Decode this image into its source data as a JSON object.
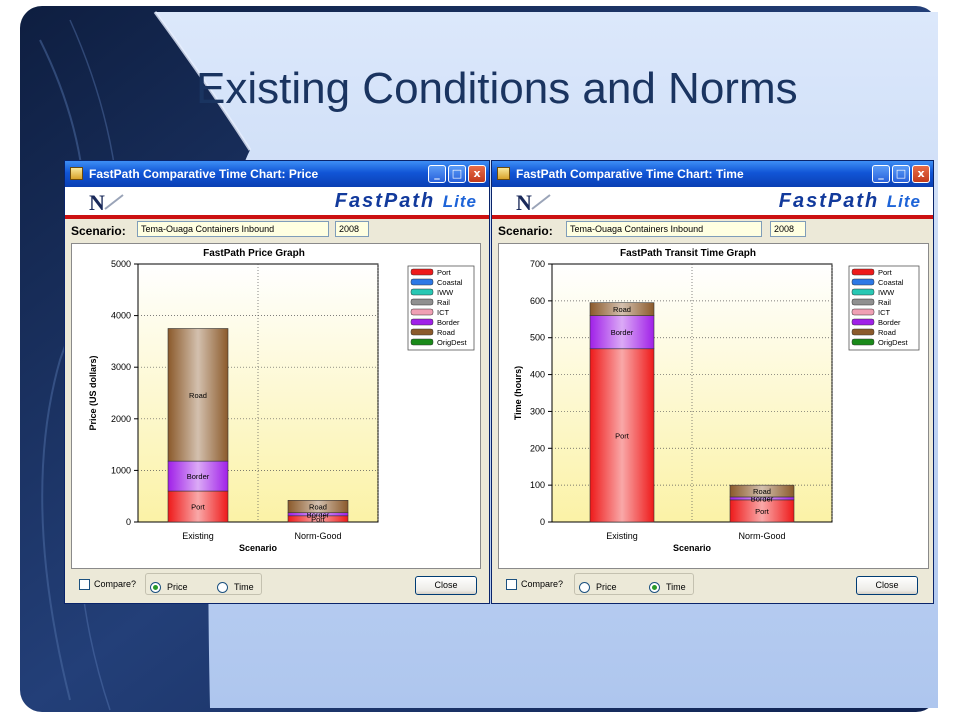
{
  "slide": {
    "title": "Existing Conditions and Norms"
  },
  "windows": [
    {
      "title": "FastPath Comparative Time Chart:  Price",
      "brand": "FastPath",
      "brand_suffix": "Lite",
      "logo": "N",
      "scenario_label": "Scenario:",
      "scenario_value": "Tema-Ouaga Containers Inbound",
      "year": "2008",
      "compare_label": "Compare?",
      "price_label": "Price",
      "time_label": "Time",
      "selected": "price",
      "close_label": "Close",
      "title_buttons": [
        "_",
        "□",
        "x"
      ]
    },
    {
      "title": "FastPath Comparative Time Chart:  Time",
      "brand": "FastPath",
      "brand_suffix": "Lite",
      "logo": "N",
      "scenario_label": "Scenario:",
      "scenario_value": "Tema-Ouaga Containers Inbound",
      "year": "2008",
      "compare_label": "Compare?",
      "price_label": "Price",
      "time_label": "Time",
      "selected": "time",
      "close_label": "Close",
      "title_buttons": [
        "_",
        "□",
        "x"
      ]
    }
  ],
  "chart_data": [
    {
      "type": "bar",
      "stacked": true,
      "title": "FastPath Price Graph",
      "xlabel": "Scenario",
      "ylabel": "Price (US dollars)",
      "ylim": [
        0,
        5000
      ],
      "yticks": [
        0,
        1000,
        2000,
        3000,
        4000,
        5000
      ],
      "categories": [
        "Existing",
        "Norm-Good"
      ],
      "grid": true,
      "legend_position": "top-right",
      "legend": [
        "Port",
        "Coastal",
        "IWW",
        "Rail",
        "ICT",
        "Border",
        "Road",
        "OrigDest"
      ],
      "legend_colors": [
        "#ee1a1a",
        "#2c78e6",
        "#28c8b4",
        "#909090",
        "#f0a0b4",
        "#a020e8",
        "#8b5a2b",
        "#1a8a1a"
      ],
      "series": [
        {
          "name": "Port",
          "values": [
            600,
            120
          ],
          "color": "#ee1a1a"
        },
        {
          "name": "Border",
          "values": [
            580,
            60
          ],
          "color": "#a020e8"
        },
        {
          "name": "Road",
          "values": [
            2570,
            240
          ],
          "color": "#8b5a2b"
        }
      ]
    },
    {
      "type": "bar",
      "stacked": true,
      "title": "FastPath Transit Time Graph",
      "xlabel": "Scenario",
      "ylabel": "Time (hours)",
      "ylim": [
        0,
        700
      ],
      "yticks": [
        0,
        100,
        200,
        300,
        400,
        500,
        600,
        700
      ],
      "categories": [
        "Existing",
        "Norm-Good"
      ],
      "grid": true,
      "legend_position": "top-right",
      "legend": [
        "Port",
        "Coastal",
        "IWW",
        "Rail",
        "ICT",
        "Border",
        "Road",
        "OrigDest"
      ],
      "legend_colors": [
        "#ee1a1a",
        "#2c78e6",
        "#28c8b4",
        "#909090",
        "#f0a0b4",
        "#a020e8",
        "#8b5a2b",
        "#1a8a1a"
      ],
      "series": [
        {
          "name": "Port",
          "values": [
            470,
            60
          ],
          "color": "#ee1a1a"
        },
        {
          "name": "Border",
          "values": [
            90,
            8
          ],
          "color": "#a020e8"
        },
        {
          "name": "Road",
          "values": [
            35,
            32
          ],
          "color": "#8b5a2b"
        }
      ]
    }
  ]
}
